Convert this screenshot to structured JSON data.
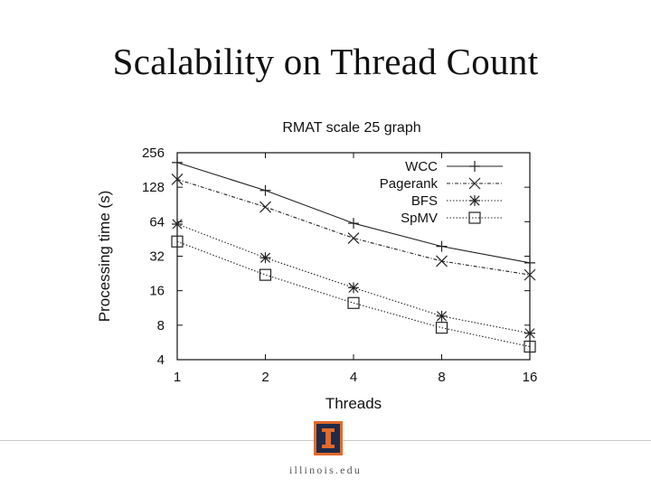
{
  "slide": {
    "title": "Scalability on Thread Count",
    "footer_url": "illinois.edu"
  },
  "colors": {
    "background": "#ffffff",
    "series_line": "#222222",
    "logo_orange": "#e06a2c",
    "logo_blue": "#1e2b4a"
  },
  "chart_data": {
    "type": "line",
    "title": "RMAT scale 25 graph",
    "xlabel": "Threads",
    "ylabel": "Processing time (s)",
    "xscale": "log2",
    "yscale": "log2",
    "x": [
      1,
      2,
      4,
      8,
      16
    ],
    "x_tick_labels": [
      "1",
      "2",
      "4",
      "8",
      "16"
    ],
    "y_ticks": [
      4,
      8,
      16,
      32,
      64,
      128,
      256
    ],
    "y_tick_labels": [
      "4",
      "8",
      "16",
      "32",
      "64",
      "128",
      "256"
    ],
    "xlim": [
      1,
      16
    ],
    "ylim": [
      4,
      256
    ],
    "legend_position": "top-right",
    "grid": false,
    "series": [
      {
        "name": "WCC",
        "marker": "plus",
        "line_style": "solid",
        "values": [
          210,
          120,
          62,
          39,
          28
        ]
      },
      {
        "name": "Pagerank",
        "marker": "x",
        "line_style": "dash-dot",
        "values": [
          150,
          86,
          46,
          29,
          22
        ]
      },
      {
        "name": "BFS",
        "marker": "asterisk",
        "line_style": "dotted",
        "values": [
          61,
          31,
          17,
          9.6,
          6.8
        ]
      },
      {
        "name": "SpMV",
        "marker": "square",
        "line_style": "dotted",
        "values": [
          43,
          22,
          12.5,
          7.6,
          5.2
        ]
      }
    ]
  }
}
